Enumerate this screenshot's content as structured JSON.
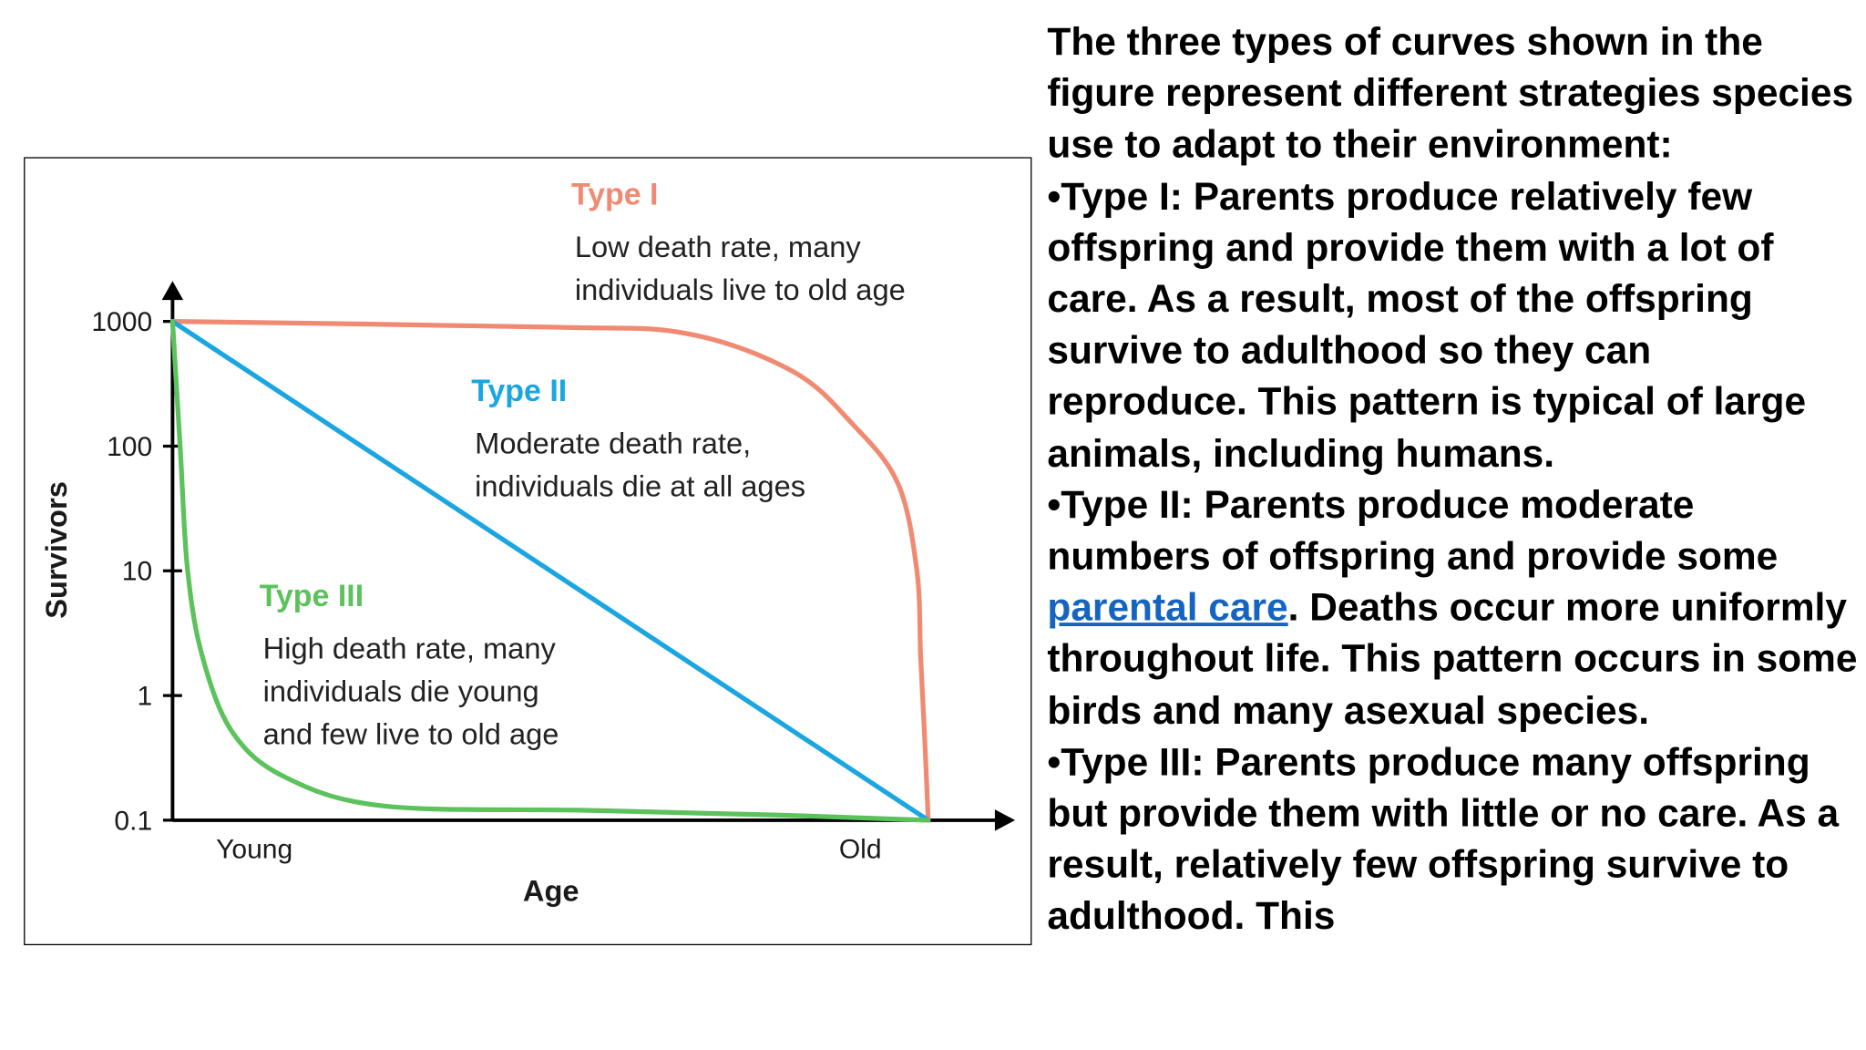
{
  "chart_data": {
    "type": "line",
    "y_scale": "log",
    "ylabel": "Survivors",
    "xlabel": "Age",
    "ylim": [
      0.1,
      1000
    ],
    "xlim": [
      0,
      1
    ],
    "x_ticks": [
      {
        "label": "Young",
        "x": 0.05
      },
      {
        "label": "Old",
        "x": 0.94
      }
    ],
    "y_ticks": [
      {
        "label": "1000",
        "value": 1000
      },
      {
        "label": "100",
        "value": 100
      },
      {
        "label": "10",
        "value": 10
      },
      {
        "label": "1",
        "value": 1
      },
      {
        "label": "0.1",
        "value": 0.1
      }
    ],
    "series": [
      {
        "name": "Type I",
        "color": "#f08a72",
        "title": "Type I",
        "description": [
          "Low death rate, many",
          "individuals live to old age"
        ],
        "points": [
          [
            0,
            1000
          ],
          [
            0.5,
            900
          ],
          [
            0.68,
            800
          ],
          [
            0.82,
            400
          ],
          [
            0.9,
            150
          ],
          [
            0.96,
            50
          ],
          [
            0.985,
            10
          ],
          [
            0.99,
            2
          ],
          [
            0.995,
            0.5
          ],
          [
            1.0,
            0.1
          ]
        ]
      },
      {
        "name": "Type II",
        "color": "#1ba6e0",
        "title": "Type II",
        "description": [
          "Moderate death rate,",
          "individuals die at all ages"
        ],
        "points": [
          [
            0,
            1000
          ],
          [
            1.0,
            0.1
          ]
        ]
      },
      {
        "name": "Type III",
        "color": "#5cc25c",
        "title": "Type III",
        "description": [
          "High death rate, many",
          "individuals die young",
          "and few live to old age"
        ],
        "points": [
          [
            0,
            1000
          ],
          [
            0.01,
            100
          ],
          [
            0.02,
            10
          ],
          [
            0.04,
            2
          ],
          [
            0.08,
            0.5
          ],
          [
            0.15,
            0.22
          ],
          [
            0.28,
            0.13
          ],
          [
            0.55,
            0.12
          ],
          [
            0.8,
            0.11
          ],
          [
            1.0,
            0.1
          ]
        ]
      }
    ]
  },
  "side_text": {
    "intro": "The three types of curves shown in the figure represent different strategies species use to adapt to their environment:",
    "type1": "•Type I: Parents produce relatively few offspring and provide them with a lot of care. As a result, most of the offspring survive to adulthood so they can reproduce. This pattern is typical of large animals, including humans.",
    "type2_before": "•Type II: Parents produce moderate numbers of offspring and provide some ",
    "type2_link": "parental care",
    "type2_after": ". Deaths occur more uniformly throughout life. This pattern occurs in some birds and many asexual species.",
    "type3": "•Type III: Parents produce many offspring but provide them with little or no care. As a result, relatively few offspring survive to adulthood. This"
  }
}
